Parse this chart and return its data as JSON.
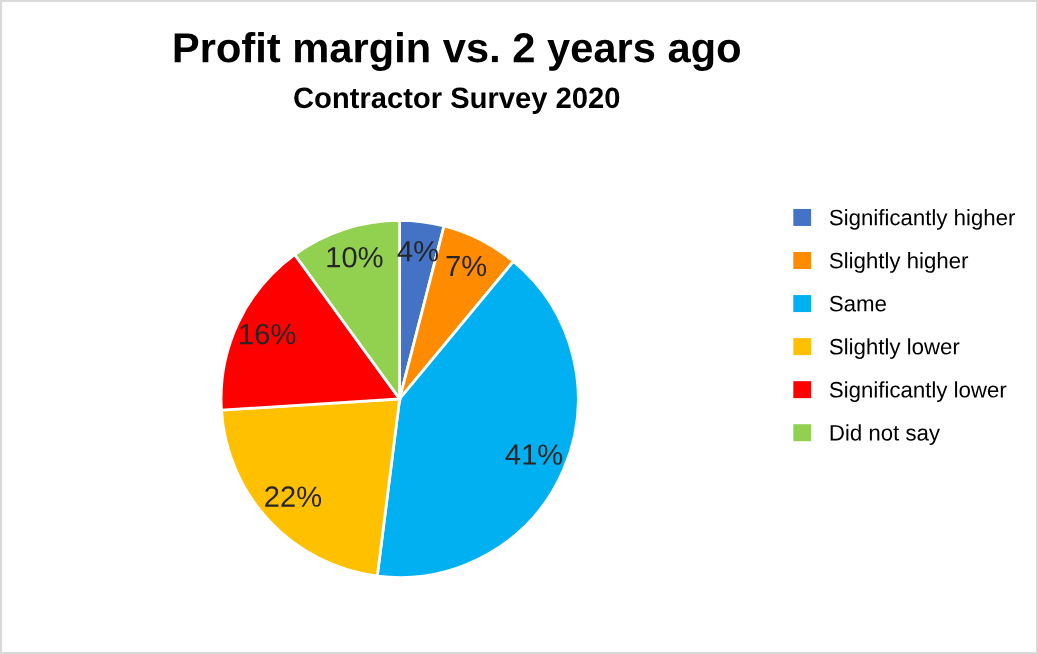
{
  "chart_data": {
    "type": "pie",
    "title": "Profit margin vs. 2 years ago",
    "subtitle": "Contractor Survey 2020",
    "categories": [
      "Significantly higher",
      "Slightly higher",
      "Same",
      "Slightly lower",
      "Significantly lower",
      "Did not say"
    ],
    "values": [
      4,
      7,
      41,
      22,
      16,
      10
    ],
    "colors": [
      "#4472c4",
      "#ff8c00",
      "#00b0f0",
      "#ffc000",
      "#ff0000",
      "#92d050"
    ],
    "value_labels": [
      "4%",
      "7%",
      "41%",
      "22%",
      "16%",
      "10%"
    ],
    "legend": "right"
  }
}
